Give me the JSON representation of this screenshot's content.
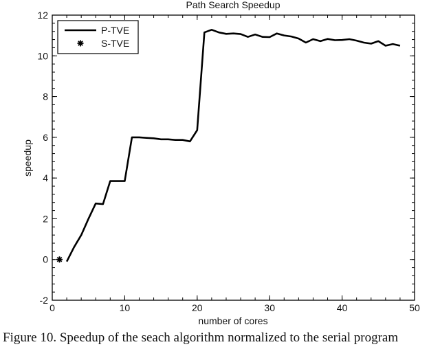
{
  "chart_data": {
    "type": "line",
    "title": "Path Search Speedup",
    "xlabel": "number of cores",
    "ylabel": "speedup",
    "xlim": [
      0,
      50
    ],
    "ylim": [
      -2,
      12
    ],
    "xticks": [
      0,
      10,
      20,
      30,
      40,
      50
    ],
    "yticks": [
      -2,
      0,
      2,
      4,
      6,
      8,
      10,
      12
    ],
    "grid": false,
    "legend_position": "upper left",
    "series": [
      {
        "name": "P-TVE",
        "style": "solid-line",
        "color": "#000000",
        "x": [
          2,
          3,
          4,
          5,
          6,
          7,
          8,
          9,
          10,
          11,
          12,
          13,
          14,
          15,
          16,
          17,
          18,
          19,
          20,
          21,
          22,
          23,
          24,
          25,
          26,
          27,
          28,
          29,
          30,
          31,
          32,
          33,
          34,
          35,
          36,
          37,
          38,
          39,
          40,
          41,
          42,
          43,
          44,
          45,
          46,
          47,
          48
        ],
        "values": [
          -0.1,
          0.6,
          1.2,
          2.0,
          2.75,
          2.72,
          3.85,
          3.85,
          3.85,
          6.0,
          6.0,
          5.97,
          5.95,
          5.9,
          5.9,
          5.87,
          5.87,
          5.8,
          6.35,
          11.15,
          11.28,
          11.15,
          11.08,
          11.1,
          11.07,
          10.93,
          11.05,
          10.93,
          10.92,
          11.1,
          11.0,
          10.95,
          10.85,
          10.65,
          10.82,
          10.72,
          10.83,
          10.77,
          10.78,
          10.82,
          10.75,
          10.65,
          10.6,
          10.72,
          10.5,
          10.58,
          10.5
        ]
      },
      {
        "name": "S-TVE",
        "style": "asterisk-marker",
        "color": "#000000",
        "x": [
          1
        ],
        "values": [
          0
        ]
      }
    ]
  },
  "caption": "Figure 10. Speedup of the seach algorithm normalized to the serial program"
}
